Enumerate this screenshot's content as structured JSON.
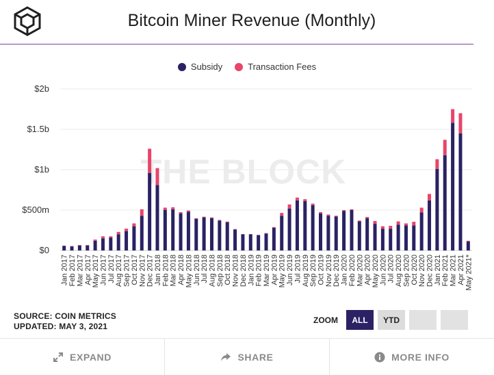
{
  "header": {
    "title": "Bitcoin Miner Revenue (Monthly)"
  },
  "watermark": "THE BLOCK",
  "legend": [
    {
      "label": "Subsidy",
      "color": "#2a2264"
    },
    {
      "label": "Transaction Fees",
      "color": "#e8456b"
    }
  ],
  "chart_data": {
    "type": "bar",
    "stacked": true,
    "title": "Bitcoin Miner Revenue (Monthly)",
    "xlabel": "",
    "ylabel": "",
    "ylim": [
      0,
      2000000000
    ],
    "yticks": [
      {
        "value": 0,
        "label": "$0"
      },
      {
        "value": 500000000,
        "label": "$500m"
      },
      {
        "value": 1000000000,
        "label": "$1b"
      },
      {
        "value": 1500000000,
        "label": "$1.5b"
      },
      {
        "value": 2000000000,
        "label": "$2b"
      }
    ],
    "grid": true,
    "legend_position": "top-center",
    "categories": [
      "Jan 2017",
      "Feb 2017",
      "Mar 2017",
      "Apr 2017",
      "May 2017",
      "Jun 2017",
      "Jul 2017",
      "Aug 2017",
      "Sep 2017",
      "Oct 2017",
      "Nov 2017",
      "Dec 2017",
      "Jan 2018",
      "Feb 2018",
      "Mar 2018",
      "Apr 2018",
      "May 2018",
      "Jun 2018",
      "Jul 2018",
      "Aug 2018",
      "Sep 2018",
      "Oct 2018",
      "Nov 2018",
      "Dec 2018",
      "Jan 2019",
      "Feb 2019",
      "Mar 2019",
      "Apr 2019",
      "May 2019",
      "Jun 2019",
      "Jul 2019",
      "Aug 2019",
      "Sep 2019",
      "Oct 2019",
      "Nov 2019",
      "Dec 2019",
      "Jan 2020",
      "Feb 2020",
      "Mar 2020",
      "Apr 2020",
      "May 2020",
      "Jun 2020",
      "Jul 2020",
      "Aug 2020",
      "Sep 2020",
      "Oct 2020",
      "Nov 2020",
      "Dec 2020",
      "Jan 2021",
      "Feb 2021",
      "Mar 2021",
      "Apr 2021",
      "May 2021*"
    ],
    "series": [
      {
        "name": "Subsidy",
        "color": "#2a2264",
        "values": [
          55,
          50,
          60,
          60,
          120,
          150,
          160,
          200,
          240,
          300,
          430,
          960,
          810,
          500,
          510,
          460,
          480,
          390,
          410,
          400,
          370,
          350,
          260,
          200,
          200,
          190,
          210,
          280,
          430,
          520,
          620,
          610,
          560,
          460,
          430,
          420,
          490,
          500,
          360,
          400,
          330,
          270,
          270,
          320,
          310,
          310,
          470,
          620,
          1010,
          1180,
          1580,
          1450,
          110
        ]
      },
      {
        "name": "Transaction Fees",
        "color": "#e8456b",
        "values": [
          5,
          5,
          8,
          8,
          15,
          25,
          15,
          30,
          30,
          35,
          80,
          300,
          210,
          30,
          25,
          15,
          15,
          10,
          8,
          10,
          8,
          8,
          5,
          3,
          3,
          3,
          5,
          10,
          35,
          50,
          35,
          25,
          20,
          15,
          15,
          10,
          10,
          10,
          10,
          15,
          35,
          30,
          35,
          40,
          25,
          45,
          60,
          80,
          120,
          190,
          170,
          250,
          10
        ]
      }
    ],
    "unit_note": "values in $ millions"
  },
  "footer": {
    "source": "SOURCE: COIN METRICS",
    "updated": "UPDATED: MAY 3, 2021",
    "zoom_label": "ZOOM",
    "zoom_all": "ALL",
    "zoom_ytd": "YTD"
  },
  "actions": {
    "expand": "EXPAND",
    "share": "SHARE",
    "more_info": "MORE INFO"
  }
}
